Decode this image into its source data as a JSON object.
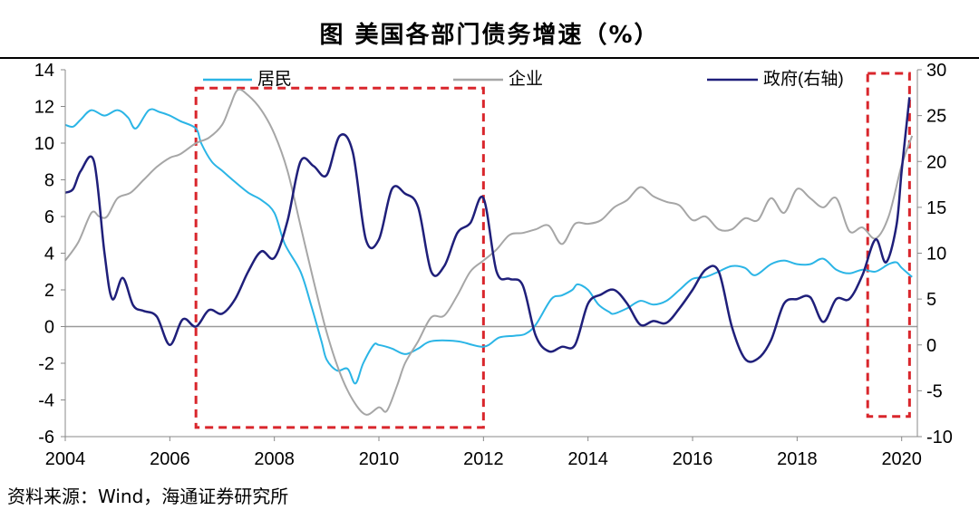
{
  "title": "图  美国各部门债务增速（%）",
  "source": "资料来源：Wind，海通证券研究所",
  "chart_data": {
    "type": "line",
    "xlim": [
      2004,
      2020.3
    ],
    "ylim_left": [
      -6,
      14
    ],
    "ylim_right": [
      -10,
      30
    ],
    "x_ticks": [
      2004,
      2006,
      2008,
      2010,
      2012,
      2014,
      2016,
      2018,
      2020
    ],
    "y_left_ticks": [
      -6,
      -4,
      -2,
      0,
      2,
      4,
      6,
      8,
      10,
      12,
      14
    ],
    "y_right_ticks": [
      -10,
      -5,
      0,
      5,
      10,
      15,
      20,
      25,
      30
    ],
    "colors": {
      "household": "#2bb5e6",
      "corporate": "#a6a6a6",
      "government": "#1f1f7a",
      "highlight": "#d9262c"
    },
    "highlight_boxes": [
      {
        "x0": 2006.5,
        "x1": 2012.0,
        "y0": -5.5,
        "y1": 13.0
      },
      {
        "x0": 2019.35,
        "x1": 2020.15,
        "y0": -4.9,
        "y1": 13.8
      }
    ],
    "series": [
      {
        "name": "居民",
        "axis": "left",
        "points": [
          [
            2004,
            11.0
          ],
          [
            2004.15,
            10.9
          ],
          [
            2004.3,
            11.3
          ],
          [
            2004.5,
            11.8
          ],
          [
            2004.75,
            11.5
          ],
          [
            2005.0,
            11.8
          ],
          [
            2005.2,
            11.4
          ],
          [
            2005.35,
            10.8
          ],
          [
            2005.6,
            11.8
          ],
          [
            2005.8,
            11.7
          ],
          [
            2006.0,
            11.5
          ],
          [
            2006.2,
            11.2
          ],
          [
            2006.5,
            10.8
          ],
          [
            2006.6,
            10.0
          ],
          [
            2006.8,
            9.0
          ],
          [
            2007.0,
            8.5
          ],
          [
            2007.2,
            8.0
          ],
          [
            2007.5,
            7.3
          ],
          [
            2007.75,
            6.9
          ],
          [
            2008.0,
            6.2
          ],
          [
            2008.2,
            4.5
          ],
          [
            2008.5,
            3.0
          ],
          [
            2008.7,
            1.2
          ],
          [
            2008.9,
            -0.8
          ],
          [
            2009.0,
            -1.8
          ],
          [
            2009.2,
            -2.4
          ],
          [
            2009.4,
            -2.3
          ],
          [
            2009.55,
            -3.1
          ],
          [
            2009.7,
            -2.0
          ],
          [
            2009.9,
            -1.0
          ],
          [
            2010.0,
            -1.0
          ],
          [
            2010.25,
            -1.2
          ],
          [
            2010.5,
            -1.5
          ],
          [
            2010.75,
            -1.2
          ],
          [
            2011.0,
            -0.8
          ],
          [
            2011.5,
            -0.8
          ],
          [
            2012.0,
            -1.1
          ],
          [
            2012.3,
            -0.6
          ],
          [
            2012.6,
            -0.5
          ],
          [
            2012.8,
            -0.4
          ],
          [
            2013.0,
            0.1
          ],
          [
            2013.3,
            1.5
          ],
          [
            2013.5,
            1.7
          ],
          [
            2013.7,
            2.0
          ],
          [
            2013.8,
            2.3
          ],
          [
            2014.0,
            2.0
          ],
          [
            2014.2,
            1.2
          ],
          [
            2014.4,
            0.8
          ],
          [
            2014.5,
            0.7
          ],
          [
            2014.75,
            1.0
          ],
          [
            2015.0,
            1.4
          ],
          [
            2015.25,
            1.2
          ],
          [
            2015.5,
            1.4
          ],
          [
            2015.75,
            2.0
          ],
          [
            2016.0,
            2.6
          ],
          [
            2016.25,
            2.7
          ],
          [
            2016.5,
            3.0
          ],
          [
            2016.75,
            3.3
          ],
          [
            2017.0,
            3.2
          ],
          [
            2017.2,
            2.8
          ],
          [
            2017.5,
            3.4
          ],
          [
            2017.75,
            3.6
          ],
          [
            2018.0,
            3.4
          ],
          [
            2018.25,
            3.4
          ],
          [
            2018.5,
            3.7
          ],
          [
            2018.75,
            3.1
          ],
          [
            2019.0,
            2.9
          ],
          [
            2019.25,
            3.1
          ],
          [
            2019.5,
            3.0
          ],
          [
            2019.75,
            3.4
          ],
          [
            2019.9,
            3.5
          ],
          [
            2020.0,
            3.2
          ],
          [
            2020.2,
            2.7
          ]
        ]
      },
      {
        "name": "企业",
        "axis": "left",
        "points": [
          [
            2004,
            3.6
          ],
          [
            2004.25,
            4.6
          ],
          [
            2004.5,
            6.2
          ],
          [
            2004.65,
            6.0
          ],
          [
            2004.8,
            6.0
          ],
          [
            2005.0,
            7.0
          ],
          [
            2005.25,
            7.3
          ],
          [
            2005.5,
            8.0
          ],
          [
            2005.75,
            8.7
          ],
          [
            2006.0,
            9.2
          ],
          [
            2006.2,
            9.4
          ],
          [
            2006.5,
            10.0
          ],
          [
            2006.75,
            10.3
          ],
          [
            2007.0,
            11.0
          ],
          [
            2007.15,
            12.0
          ],
          [
            2007.3,
            12.9
          ],
          [
            2007.5,
            12.6
          ],
          [
            2007.75,
            11.8
          ],
          [
            2008.0,
            10.5
          ],
          [
            2008.25,
            8.5
          ],
          [
            2008.5,
            5.5
          ],
          [
            2008.75,
            2.5
          ],
          [
            2009.0,
            -0.3
          ],
          [
            2009.25,
            -2.5
          ],
          [
            2009.5,
            -4.0
          ],
          [
            2009.75,
            -4.8
          ],
          [
            2010.0,
            -4.4
          ],
          [
            2010.15,
            -4.6
          ],
          [
            2010.35,
            -3.2
          ],
          [
            2010.5,
            -2.0
          ],
          [
            2010.75,
            -0.8
          ],
          [
            2011.0,
            0.5
          ],
          [
            2011.25,
            0.6
          ],
          [
            2011.5,
            1.7
          ],
          [
            2011.75,
            3.0
          ],
          [
            2012.0,
            3.6
          ],
          [
            2012.25,
            4.2
          ],
          [
            2012.5,
            5.0
          ],
          [
            2012.75,
            5.1
          ],
          [
            2013.0,
            5.3
          ],
          [
            2013.25,
            5.5
          ],
          [
            2013.5,
            4.5
          ],
          [
            2013.75,
            5.6
          ],
          [
            2014.0,
            5.6
          ],
          [
            2014.25,
            5.8
          ],
          [
            2014.5,
            6.5
          ],
          [
            2014.75,
            6.9
          ],
          [
            2015.0,
            7.6
          ],
          [
            2015.25,
            7.1
          ],
          [
            2015.5,
            6.8
          ],
          [
            2015.75,
            6.6
          ],
          [
            2016.0,
            5.8
          ],
          [
            2016.25,
            6.0
          ],
          [
            2016.5,
            5.3
          ],
          [
            2016.75,
            5.3
          ],
          [
            2017.0,
            5.9
          ],
          [
            2017.25,
            5.8
          ],
          [
            2017.5,
            7.0
          ],
          [
            2017.75,
            6.2
          ],
          [
            2018.0,
            7.5
          ],
          [
            2018.25,
            7.0
          ],
          [
            2018.5,
            6.5
          ],
          [
            2018.75,
            7.0
          ],
          [
            2019.0,
            5.2
          ],
          [
            2019.25,
            5.4
          ],
          [
            2019.5,
            4.8
          ],
          [
            2019.75,
            6.0
          ],
          [
            2020.0,
            8.8
          ],
          [
            2020.2,
            10.4
          ]
        ]
      },
      {
        "name": "政府(右轴)",
        "axis": "right",
        "points": [
          [
            2004,
            16.6
          ],
          [
            2004.15,
            17.0
          ],
          [
            2004.3,
            19.0
          ],
          [
            2004.55,
            20.0
          ],
          [
            2004.75,
            10.0
          ],
          [
            2004.9,
            5.0
          ],
          [
            2005.1,
            7.3
          ],
          [
            2005.3,
            4.3
          ],
          [
            2005.5,
            3.7
          ],
          [
            2005.75,
            3.1
          ],
          [
            2006.0,
            0.0
          ],
          [
            2006.25,
            2.8
          ],
          [
            2006.5,
            2.0
          ],
          [
            2006.75,
            3.8
          ],
          [
            2007.0,
            3.4
          ],
          [
            2007.25,
            5.0
          ],
          [
            2007.5,
            8.0
          ],
          [
            2007.75,
            10.2
          ],
          [
            2008.0,
            9.5
          ],
          [
            2008.25,
            13.5
          ],
          [
            2008.5,
            20.0
          ],
          [
            2008.75,
            19.5
          ],
          [
            2009.0,
            18.5
          ],
          [
            2009.25,
            22.8
          ],
          [
            2009.5,
            21.0
          ],
          [
            2009.75,
            11.5
          ],
          [
            2010.0,
            11.5
          ],
          [
            2010.25,
            17.0
          ],
          [
            2010.5,
            16.5
          ],
          [
            2010.75,
            15.0
          ],
          [
            2011.0,
            8.0
          ],
          [
            2011.25,
            8.6
          ],
          [
            2011.5,
            12.2
          ],
          [
            2011.75,
            13.3
          ],
          [
            2012.0,
            16.0
          ],
          [
            2012.25,
            8.0
          ],
          [
            2012.5,
            7.2
          ],
          [
            2012.75,
            6.5
          ],
          [
            2013.0,
            1.0
          ],
          [
            2013.25,
            -0.7
          ],
          [
            2013.5,
            -0.2
          ],
          [
            2013.75,
            0.0
          ],
          [
            2014.0,
            4.5
          ],
          [
            2014.25,
            5.5
          ],
          [
            2014.5,
            6.0
          ],
          [
            2014.75,
            4.5
          ],
          [
            2015.0,
            2.2
          ],
          [
            2015.25,
            2.6
          ],
          [
            2015.5,
            2.4
          ],
          [
            2015.75,
            4.0
          ],
          [
            2016.0,
            6.0
          ],
          [
            2016.25,
            8.2
          ],
          [
            2016.5,
            8.0
          ],
          [
            2016.75,
            2.0
          ],
          [
            2017.0,
            -1.5
          ],
          [
            2017.25,
            -1.5
          ],
          [
            2017.5,
            0.5
          ],
          [
            2017.75,
            4.5
          ],
          [
            2018.0,
            5.0
          ],
          [
            2018.25,
            5.2
          ],
          [
            2018.5,
            2.5
          ],
          [
            2018.75,
            5.0
          ],
          [
            2019.0,
            5.0
          ],
          [
            2019.25,
            7.6
          ],
          [
            2019.5,
            11.5
          ],
          [
            2019.7,
            9.0
          ],
          [
            2019.9,
            13.0
          ],
          [
            2020.0,
            19.0
          ],
          [
            2020.15,
            27.0
          ]
        ]
      }
    ]
  }
}
